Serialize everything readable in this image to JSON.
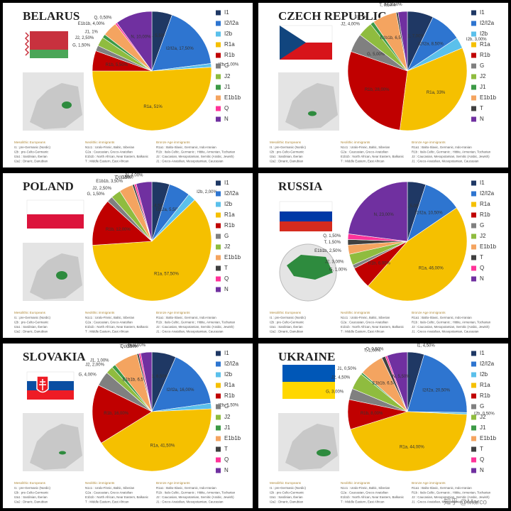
{
  "chart_data": [
    {
      "type": "pie",
      "title": "BELARUS",
      "categories": [
        "I1",
        "I2/I2a",
        "I2b",
        "R1a",
        "R1b",
        "G",
        "J2",
        "J1",
        "E1b1b",
        "Q",
        "N"
      ],
      "values": [
        5.5,
        17.5,
        1,
        51,
        5.5,
        1.5,
        2.5,
        1,
        4,
        0.5,
        10
      ],
      "value_labels": [
        "I1, 5,50%",
        "I2/I2a, 17,50%",
        "I2b, 1,00%",
        "R1a, 51%",
        "R1b, 5,50%",
        "G, 1,50%",
        "J2, 2,50%",
        "J1, 1%",
        "E1b1b, 4,00%",
        "Q, 0,50%",
        "N, 10,00%"
      ],
      "colors": [
        "#1f3864",
        "#2e75d0",
        "#5bc0eb",
        "#f5c000",
        "#c00000",
        "#808080",
        "#8fbc3f",
        "#3c9a46",
        "#f4a460",
        "#ff3399",
        "#7030a0"
      ]
    },
    {
      "type": "pie",
      "title": "CZECH REPUBLIC",
      "categories": [
        "I1",
        "I2/I2a",
        "I2b",
        "R1a",
        "R1b",
        "G",
        "J2",
        "J1",
        "E1b1b",
        "T",
        "N"
      ],
      "values": [
        7,
        8.5,
        3,
        33,
        28,
        5,
        4,
        1,
        6.5,
        0.5,
        2.5
      ],
      "value_labels": [
        "I1, 7,00%",
        "I2/I2a, 8,50%",
        "I2b, 3,00%",
        "R1a, 33%",
        "R1b, 28,00%",
        "G, 5,00%",
        "J2, 4,00%",
        "J1, 1%",
        "E1b1b, 6,50%",
        "T, 0,50%",
        "N, 2,50%"
      ],
      "colors": [
        "#1f3864",
        "#2e75d0",
        "#5bc0eb",
        "#f5c000",
        "#c00000",
        "#808080",
        "#8fbc3f",
        "#3c9a46",
        "#f4a460",
        "#404040",
        "#7030a0"
      ]
    },
    {
      "type": "pie",
      "title": "POLAND",
      "categories": [
        "I1",
        "I2/I2a",
        "I2b",
        "R1a",
        "R1b",
        "G",
        "J2",
        "E1b1b",
        "T",
        "Q",
        "N"
      ],
      "values": [
        4.5,
        5.5,
        2,
        57.5,
        12,
        1.5,
        2.5,
        3.5,
        0.5,
        0.5,
        4
      ],
      "value_labels": [
        "I1, 4,50%",
        "I2/I2a, 5,50%",
        "I2b, 2,00%",
        "R1a, 57,50%",
        "R1b, 12,00%",
        "G, 1,50%",
        "J2, 2,50%",
        "E1b1b, 3,50%",
        "T, 0,50%",
        "Q, 0,50%",
        "N, 4,00%"
      ],
      "colors": [
        "#1f3864",
        "#2e75d0",
        "#5bc0eb",
        "#f5c000",
        "#c00000",
        "#808080",
        "#8fbc3f",
        "#f4a460",
        "#404040",
        "#ff3399",
        "#7030a0"
      ]
    },
    {
      "type": "pie",
      "title": "RUSSIA",
      "categories": [
        "I1",
        "I2/I2a",
        "R1a",
        "R1b",
        "G",
        "J2",
        "E1b1b",
        "T",
        "Q",
        "N"
      ],
      "values": [
        5,
        10.5,
        46,
        6,
        1,
        3,
        2.5,
        1.5,
        1.5,
        23
      ],
      "value_labels": [
        "I1, 5,00%",
        "I2/I2a, 10,50%",
        "R1a, 46,00%",
        "R1b, 6,00%",
        "G, 1,00%",
        "J2, 3,00%",
        "E1b1b, 2,50%",
        "T, 1,50%",
        "Q, 1,50%",
        "N, 23,00%"
      ],
      "colors": [
        "#1f3864",
        "#2e75d0",
        "#f5c000",
        "#c00000",
        "#808080",
        "#8fbc3f",
        "#f4a460",
        "#404040",
        "#ff3399",
        "#7030a0"
      ]
    },
    {
      "type": "pie",
      "title": "SLOVAKIA",
      "categories": [
        "I1",
        "I2/I2a",
        "I2b",
        "R1a",
        "R1b",
        "G",
        "J2",
        "J1",
        "E1b1b",
        "T",
        "Q",
        "N"
      ],
      "values": [
        6.5,
        16,
        1.5,
        41.5,
        16,
        4,
        2,
        1,
        6.5,
        0.5,
        0.5,
        3
      ],
      "value_labels": [
        "I1, 6,50%",
        "I2/I2a, 16,00%",
        "I2b, 1,50%",
        "R1a, 41,50%",
        "R1b, 16,00%",
        "G, 4,00%",
        "J2, 2,00%",
        "J1, 1,00%",
        "E1b1b, 6,50%",
        "T, 0,50%",
        "Q, 0,50%",
        "N, 3,00%"
      ],
      "colors": [
        "#1f3864",
        "#2e75d0",
        "#5bc0eb",
        "#f5c000",
        "#c00000",
        "#808080",
        "#8fbc3f",
        "#3c9a46",
        "#f4a460",
        "#404040",
        "#ff3399",
        "#7030a0"
      ]
    },
    {
      "type": "pie",
      "title": "UKRAINE",
      "categories": [
        "I1",
        "I2/I2a",
        "I2b",
        "R1a",
        "R1b",
        "G",
        "J2",
        "J1",
        "E1b1b",
        "T",
        "Q",
        "N"
      ],
      "values": [
        4.5,
        20.5,
        0.5,
        44,
        8,
        3,
        4.5,
        0.5,
        6.5,
        1,
        0.5,
        5.5
      ],
      "value_labels": [
        "I1, 4,50%",
        "I2/I2a, 20,50%",
        "I2b, 0,50%",
        "R1a, 44,00%",
        "R1b, 8,00%",
        "G, 3,00%",
        "J2, 4,50%",
        "J1, 0,50%",
        "E1b1b, 6,50%",
        "T, 1,00%",
        "Q, 0,50%",
        "N, 5,50%"
      ],
      "colors": [
        "#1f3864",
        "#2e75d0",
        "#5bc0eb",
        "#f5c000",
        "#c00000",
        "#808080",
        "#8fbc3f",
        "#3c9a46",
        "#f4a460",
        "#404040",
        "#ff3399",
        "#7030a0"
      ]
    }
  ],
  "footnote": {
    "columns": [
      {
        "heading": "Mesolithic Europeans",
        "lines": [
          "I1 : pre-Germanic (Nordic)",
          "I2b : pre-Celto-Germanic",
          "I2a1 : Sardinian, Iberian",
          "I2a2 : Dinaric, Danubian"
        ]
      },
      {
        "heading": "Neolithic immigrants",
        "lines": [
          "N1c1 : Uralo-Finnic, Baltic, Siberian",
          "G2a : Caucasian, Greco-Anatolian",
          "E1b1b : North African, Near Eastern, Balkanic",
          "T : Middle Eastern, East African"
        ]
      },
      {
        "heading": "Bronze Age immigrants",
        "lines": [
          "R1a1 : Balto-Slavic, Germanic, Indo-Iranian",
          "R1b : Italo-Celtic, Germanic ; Hittite, Armenian, Tocharian",
          "J2 : Caucasian, Mesopotamian, Semitic (Arabic, Jewish)",
          "J1 : Greco-Anatolian, Mesopotamian, Caucasian"
        ]
      }
    ]
  },
  "watermark": "知乎 @Marco"
}
